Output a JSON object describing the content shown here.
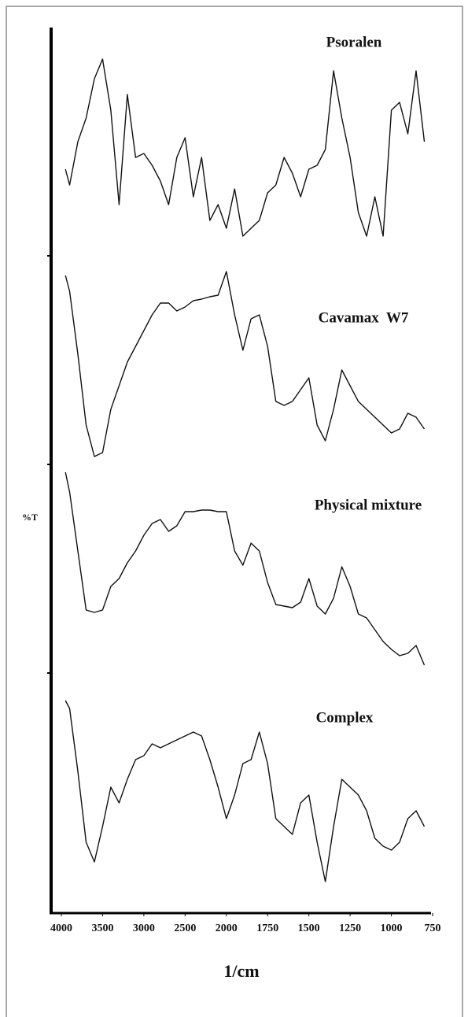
{
  "chart_data": {
    "type": "line",
    "x_label": "1/cm",
    "y_label": "%T",
    "x": [
      3950,
      3900,
      3800,
      3700,
      3600,
      3500,
      3400,
      3300,
      3200,
      3100,
      3000,
      2900,
      2800,
      2700,
      2600,
      2500,
      2400,
      2300,
      2200,
      2100,
      2000,
      1950,
      1900,
      1850,
      1800,
      1750,
      1700,
      1650,
      1600,
      1550,
      1500,
      1450,
      1400,
      1350,
      1300,
      1250,
      1200,
      1150,
      1100,
      1050,
      1000,
      950,
      900,
      850,
      800
    ],
    "xlim": [
      4000,
      750
    ],
    "xticks": [
      4000,
      3500,
      3000,
      2500,
      2000,
      1750,
      1500,
      1250,
      1000,
      750
    ],
    "ylim": [
      0,
      1125
    ],
    "series": [
      {
        "name": "Psoralen",
        "color": "#111111",
        "values": [
          945,
          925,
          980,
          1010,
          1060,
          1085,
          1020,
          900,
          1040,
          960,
          965,
          950,
          930,
          900,
          960,
          985,
          910,
          960,
          880,
          900,
          870,
          920,
          860,
          870,
          880,
          915,
          925,
          960,
          940,
          910,
          945,
          950,
          970,
          1070,
          1010,
          960,
          890,
          860,
          910,
          860,
          1020,
          1030,
          990,
          1070,
          980
        ]
      },
      {
        "name": "Cavamax  W7",
        "color": "#111111",
        "values": [
          810,
          790,
          710,
          620,
          580,
          585,
          640,
          670,
          700,
          720,
          740,
          760,
          775,
          775,
          765,
          770,
          778,
          780,
          783,
          785,
          815,
          760,
          715,
          755,
          760,
          720,
          650,
          645,
          650,
          665,
          680,
          620,
          600,
          640,
          690,
          670,
          650,
          640,
          630,
          620,
          610,
          615,
          635,
          630,
          615
        ]
      },
      {
        "name": "Physical mixture",
        "color": "#111111",
        "values": [
          560,
          535,
          460,
          385,
          382,
          385,
          415,
          425,
          445,
          460,
          480,
          495,
          500,
          485,
          492,
          510,
          510,
          512,
          512,
          510,
          510,
          460,
          442,
          470,
          460,
          420,
          392,
          390,
          388,
          395,
          425,
          390,
          380,
          400,
          440,
          415,
          380,
          375,
          360,
          345,
          335,
          327,
          330,
          340,
          315
        ]
      },
      {
        "name": "Complex",
        "color": "#111111",
        "values": [
          270,
          260,
          180,
          90,
          65,
          110,
          160,
          140,
          170,
          195,
          200,
          215,
          210,
          215,
          220,
          225,
          230,
          225,
          195,
          160,
          120,
          150,
          190,
          195,
          230,
          190,
          120,
          110,
          100,
          140,
          150,
          90,
          40,
          110,
          170,
          160,
          150,
          130,
          95,
          85,
          80,
          90,
          120,
          130,
          110
        ]
      }
    ]
  }
}
